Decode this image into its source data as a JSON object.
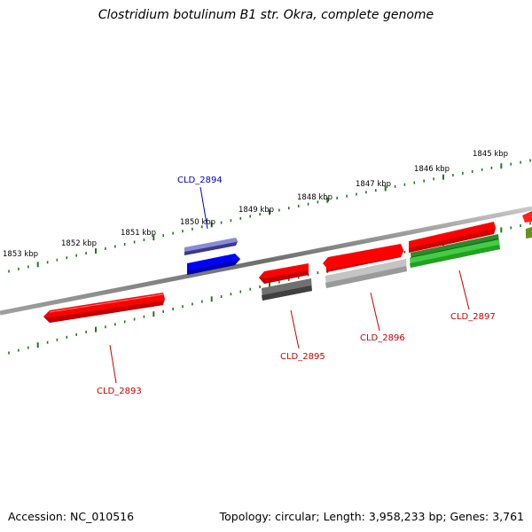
{
  "title": "Clostridium botulinum B1 str. Okra, complete genome",
  "footer": {
    "accession": "Accession: NC_010516",
    "summary": "Topology: circular; Length: 3,958,233 bp; Genes: 3,761"
  },
  "colors": {
    "backbone": "#8a8a8a",
    "tick_mark": "#1f7a1f",
    "forward_gene": "#ff0000",
    "blue_gene": "#0000ff",
    "lavender_gene": "#7777cc",
    "dark_gray_gene": "#666666",
    "light_gray_gene": "#bbbbbb",
    "green_gene": "#33bb33",
    "olive_gene": "#6b8e23",
    "red_label": "#cc0000",
    "blue_label": "#0000cc"
  },
  "ticks": {
    "labels": [
      "1853 kbp",
      "1852 kbp",
      "1851 kbp",
      "1850 kbp",
      "1849 kbp",
      "1848 kbp",
      "1847 kbp",
      "1846 kbp",
      "1845 kbp"
    ]
  },
  "gene_labels": {
    "cld_2893": "CLD_2893",
    "cld_2894": "CLD_2894",
    "cld_2895": "CLD_2895",
    "cld_2896": "CLD_2896",
    "cld_2897": "CLD_2897"
  }
}
